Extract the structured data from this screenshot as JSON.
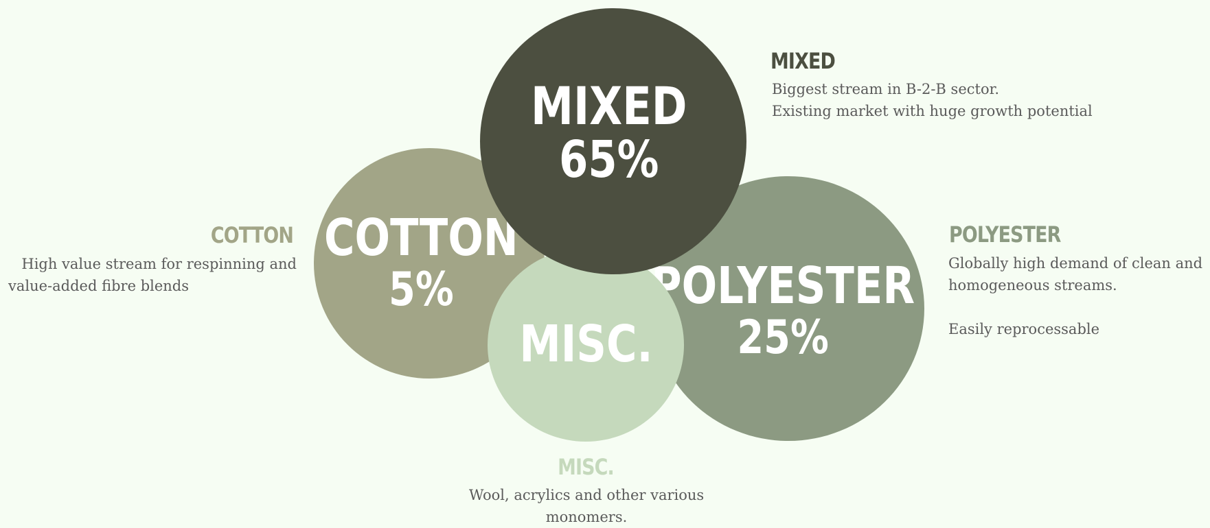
{
  "colors": {
    "background": "#f6fdf3",
    "mixed": "#4c4f40",
    "cotton": "#a2a587",
    "polyester": "#8c9a82",
    "misc": "#c5d9bc",
    "text": "#5a5a5a"
  },
  "bubbles": {
    "cotton": {
      "name": "COTTON",
      "percent": "5%"
    },
    "mixed": {
      "name": "MIXED",
      "percent": "65%"
    },
    "misc": {
      "name": "MISC."
    },
    "polyester": {
      "name": "POLYESTER",
      "percent": "25%"
    }
  },
  "legend": {
    "mixed": {
      "title": "MIXED",
      "lines": [
        "Biggest stream in B-2-B sector.",
        "Existing market with huge growth potential"
      ]
    },
    "cotton": {
      "title": "COTTON",
      "lines": [
        "High value stream for respinning and",
        "value-added fibre blends"
      ]
    },
    "polyester": {
      "title": "POLYESTER",
      "lines": [
        "Globally high demand of clean and",
        "homogeneous streams.",
        "Easily reprocessable"
      ]
    },
    "misc": {
      "title": "MISC.",
      "lines": [
        "Wool, acrylics and other various",
        "monomers."
      ]
    }
  }
}
